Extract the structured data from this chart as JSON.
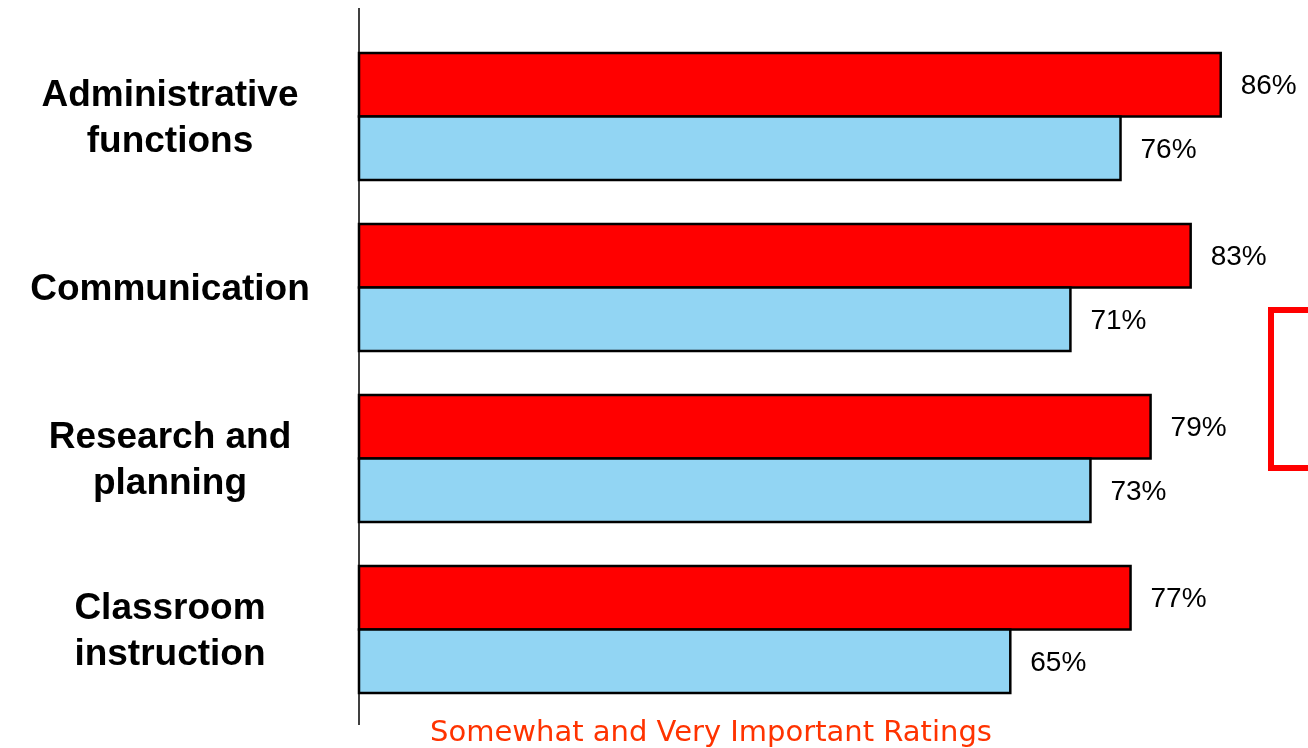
{
  "chart_data": {
    "type": "bar",
    "orientation": "horizontal",
    "xlabel": "Somewhat and Very Important Ratings",
    "categories": [
      "Administrative functions",
      "Communication",
      "Research and planning",
      "Classroom instruction"
    ],
    "series": [
      {
        "color": "#ff0000",
        "values": [
          86,
          83,
          79,
          77
        ],
        "value_labels": [
          "86%",
          "83%",
          "79%",
          "77%"
        ]
      },
      {
        "color": "#92d5f3",
        "values": [
          76,
          71,
          73,
          65
        ],
        "value_labels": [
          "76%",
          "71%",
          "73%",
          "65%"
        ]
      }
    ]
  }
}
